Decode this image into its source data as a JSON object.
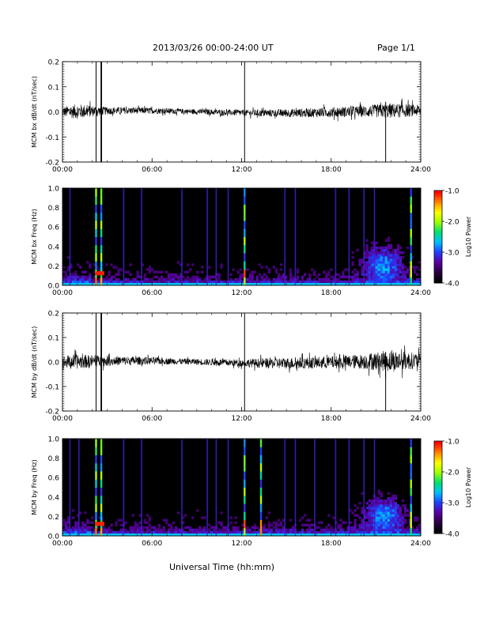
{
  "header": {
    "date_range": "2013/03/26  00:00-24:00 UT",
    "page": "Page 1/1"
  },
  "xlabel": "Universal Time (hh:mm)",
  "colors": {
    "trace": "#000000",
    "colormap": [
      "#000000",
      "#2a0040",
      "#5a00a0",
      "#2040ff",
      "#00c0ff",
      "#00e070",
      "#a0ff00",
      "#ffff00",
      "#ff8000",
      "#ff0000"
    ]
  },
  "chart_data": [
    {
      "type": "line",
      "ylabel": "MCM bx dB/dt (nT/sec)",
      "xlim": [
        0,
        24
      ],
      "ylim": [
        -0.2,
        0.2
      ],
      "xticks": [
        "00:00",
        "06:00",
        "12:00",
        "18:00",
        "24:00"
      ],
      "yticks": [
        "0.2",
        "0.1",
        "0.0",
        "-0.1",
        "-0.2"
      ],
      "noise_envelope": [
        [
          0,
          0.02
        ],
        [
          1,
          0.03
        ],
        [
          3,
          0.015
        ],
        [
          8,
          0.01
        ],
        [
          12,
          0.012
        ],
        [
          14,
          0.015
        ],
        [
          18,
          0.02
        ],
        [
          20,
          0.022
        ],
        [
          22,
          0.03
        ],
        [
          24,
          0.022
        ]
      ],
      "spikes_hours": [
        2.25,
        2.6,
        12.2,
        21.65
      ]
    },
    {
      "type": "heatmap",
      "ylabel": "MCM bx Freq (Hz)",
      "xlim": [
        0,
        24
      ],
      "ylim": [
        0,
        1.0
      ],
      "xticks": [
        "00:00",
        "06:00",
        "12:00",
        "18:00",
        "24:00"
      ],
      "yticks": [
        "1.0",
        "0.8",
        "0.6",
        "0.4",
        "0.2",
        "0.0"
      ],
      "colorbar_label": "Log10 Power",
      "colorbar_ticks": [
        "-1.0",
        "-2.0",
        "-3.0",
        "-4.0"
      ],
      "color_range": [
        -4.0,
        -1.0
      ],
      "strong_lines_hours": [
        2.25,
        2.6,
        12.2,
        23.35
      ],
      "weak_lines_hours": [
        0.5,
        4.1,
        5.3,
        8.0,
        9.7,
        10.3,
        11.1,
        14.9,
        15.6,
        18.3,
        19.2,
        20.2,
        20.9
      ],
      "activity_center_hours": 21.5
    },
    {
      "type": "line",
      "ylabel": "MCM by dB/dt (nT/sec)",
      "xlim": [
        0,
        24
      ],
      "ylim": [
        -0.2,
        0.2
      ],
      "xticks": [
        "00:00",
        "06:00",
        "12:00",
        "18:00",
        "24:00"
      ],
      "yticks": [
        "0.2",
        "0.1",
        "0.0",
        "-0.1",
        "-0.2"
      ],
      "noise_envelope": [
        [
          0,
          0.025
        ],
        [
          1,
          0.03
        ],
        [
          3,
          0.02
        ],
        [
          8,
          0.012
        ],
        [
          12,
          0.015
        ],
        [
          14,
          0.022
        ],
        [
          18,
          0.025
        ],
        [
          20,
          0.03
        ],
        [
          22,
          0.045
        ],
        [
          24,
          0.03
        ]
      ],
      "spikes_hours": [
        2.25,
        2.6,
        12.2,
        21.65
      ]
    },
    {
      "type": "heatmap",
      "ylabel": "MCM by Freq (Hz)",
      "xlim": [
        0,
        24
      ],
      "ylim": [
        0,
        1.0
      ],
      "xticks": [
        "00:00",
        "06:00",
        "12:00",
        "18:00",
        "24:00"
      ],
      "yticks": [
        "1.0",
        "0.8",
        "0.6",
        "0.4",
        "0.2",
        "0.0"
      ],
      "colorbar_label": "Log10 Power",
      "colorbar_ticks": [
        "-1.0",
        "-2.0",
        "-3.0",
        "-4.0"
      ],
      "color_range": [
        -4.0,
        -1.0
      ],
      "strong_lines_hours": [
        2.25,
        2.6,
        12.2,
        13.3,
        23.35
      ],
      "weak_lines_hours": [
        0.5,
        1.1,
        4.1,
        5.3,
        8.0,
        9.7,
        10.3,
        11.1,
        14.9,
        15.6,
        16.9,
        18.3,
        19.2,
        20.2,
        20.9
      ],
      "activity_center_hours": 21.6
    }
  ]
}
